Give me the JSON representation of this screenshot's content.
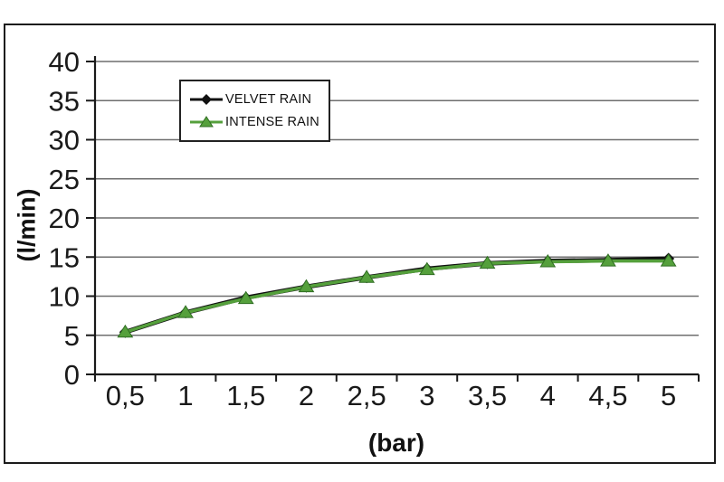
{
  "chart": {
    "y_axis_title": "(l/min)",
    "x_axis_title": "(bar)",
    "colors": {
      "axis": "#1a1a1a",
      "grid": "#6f6f6f",
      "text": "#1a1a1a",
      "velvet_rain": "#111111",
      "intense_rain": "#55a03c",
      "intense_rain_edge": "#2f6d22",
      "frame_border": "#1b1b1b",
      "background": "#ffffff"
    }
  },
  "chart_data": {
    "type": "line",
    "x": [
      0.5,
      1,
      1.5,
      2,
      2.5,
      3,
      3.5,
      4,
      4.5,
      5
    ],
    "x_tick_labels": [
      "0,5",
      "1",
      "1,5",
      "2",
      "2,5",
      "3",
      "3,5",
      "4",
      "4,5",
      "5"
    ],
    "y_ticks": [
      0,
      5,
      10,
      15,
      20,
      25,
      30,
      35,
      40
    ],
    "series": [
      {
        "name": "VELVET RAIN",
        "marker": "diamond",
        "color": "#111111",
        "values": [
          5.4,
          7.9,
          9.8,
          11.2,
          12.4,
          13.5,
          14.2,
          14.5,
          14.6,
          14.8
        ]
      },
      {
        "name": "INTENSE RAIN",
        "marker": "triangle",
        "color": "#55a03c",
        "values": [
          5.4,
          7.9,
          9.7,
          11.2,
          12.4,
          13.4,
          14.2,
          14.4,
          14.5,
          14.5
        ]
      }
    ],
    "title": "",
    "xlabel": "(bar)",
    "ylabel": "(l/min)",
    "ylim": [
      0,
      40
    ],
    "xlim_categories": 10,
    "grid": true,
    "legend_position": "top-left-inside"
  }
}
